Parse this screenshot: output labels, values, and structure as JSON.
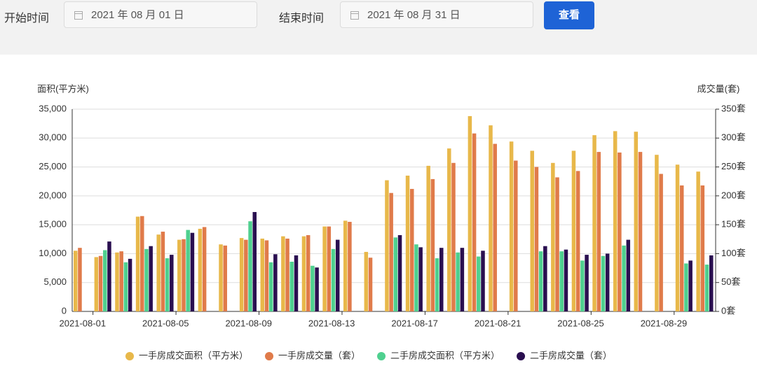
{
  "form": {
    "start_label": "开始时间",
    "start_date": "2021 年 08 月 01 日",
    "end_label": "结束时间",
    "end_date": "2021 年 08 月 31 日",
    "button": "查看"
  },
  "chart_data": {
    "type": "bar",
    "y_label": "面积(平方米)",
    "y2_label": "成交量(套)",
    "categories": [
      "2021-08-01",
      null,
      null,
      null,
      "2021-08-05",
      null,
      null,
      null,
      "2021-08-09",
      null,
      null,
      null,
      "2021-08-13",
      null,
      null,
      null,
      "2021-08-17",
      null,
      null,
      null,
      "2021-08-21",
      null,
      null,
      null,
      "2021-08-25",
      null,
      null,
      null,
      "2021-08-29",
      null,
      null
    ],
    "series": [
      {
        "name": "一手房成交面积（平方米）",
        "color": "#e8b84a",
        "axis": "y",
        "values": [
          10500,
          9400,
          10200,
          16400,
          13300,
          12400,
          14300,
          11600,
          12700,
          12600,
          13000,
          13000,
          14700,
          15700,
          10300,
          22700,
          23500,
          25200,
          28200,
          33800,
          32200,
          29400,
          27800,
          25700,
          27800,
          30500,
          31200,
          31100,
          27100,
          25400,
          24200
        ]
      },
      {
        "name": "一手房成交量（套）",
        "color": "#e07b4a",
        "axis": "y2",
        "values": [
          110,
          96,
          104,
          165,
          138,
          125,
          146,
          114,
          124,
          123,
          126,
          132,
          147,
          155,
          93,
          205,
          212,
          229,
          257,
          308,
          290,
          261,
          250,
          232,
          243,
          276,
          275,
          276,
          238,
          218,
          218
        ]
      },
      {
        "name": "二手房成交面积（平方米）",
        "color": "#4fd08f",
        "axis": "y",
        "values": [
          null,
          10600,
          8500,
          10800,
          9200,
          14100,
          null,
          null,
          15600,
          8500,
          8600,
          7900,
          10800,
          null,
          null,
          12800,
          11600,
          9200,
          10200,
          9500,
          null,
          null,
          10400,
          10400,
          8800,
          9600,
          11400,
          null,
          null,
          8300,
          8100
        ]
      },
      {
        "name": "二手房成交量（套）",
        "color": "#2a0f50",
        "axis": "y2",
        "values": [
          null,
          121,
          91,
          113,
          98,
          136,
          null,
          null,
          172,
          99,
          97,
          76,
          124,
          null,
          null,
          132,
          111,
          110,
          110,
          105,
          null,
          null,
          113,
          107,
          98,
          100,
          124,
          null,
          null,
          88,
          97
        ]
      }
    ],
    "ylim": [
      0,
      35000
    ],
    "yticks": [
      0,
      {
        "value": 5000,
        "label": "5,000"
      },
      {
        "value": 10000,
        "label": "10,000"
      },
      {
        "value": 15000,
        "label": "15,000"
      },
      {
        "value": 20000,
        "label": "20,000"
      },
      {
        "value": 25000,
        "label": "25,000"
      },
      {
        "value": 30000,
        "label": "30,000"
      },
      {
        "value": 35000,
        "label": "35,000"
      }
    ],
    "y2lim": [
      0,
      350
    ],
    "y2ticks": [
      {
        "value": 0,
        "label": "0套"
      },
      {
        "value": 50,
        "label": "50套"
      },
      {
        "value": 100,
        "label": "100套"
      },
      {
        "value": 150,
        "label": "150套"
      },
      {
        "value": 200,
        "label": "200套"
      },
      {
        "value": 250,
        "label": "250套"
      },
      {
        "value": 300,
        "label": "300套"
      },
      {
        "value": 350,
        "label": "350套"
      }
    ],
    "grid": true
  }
}
